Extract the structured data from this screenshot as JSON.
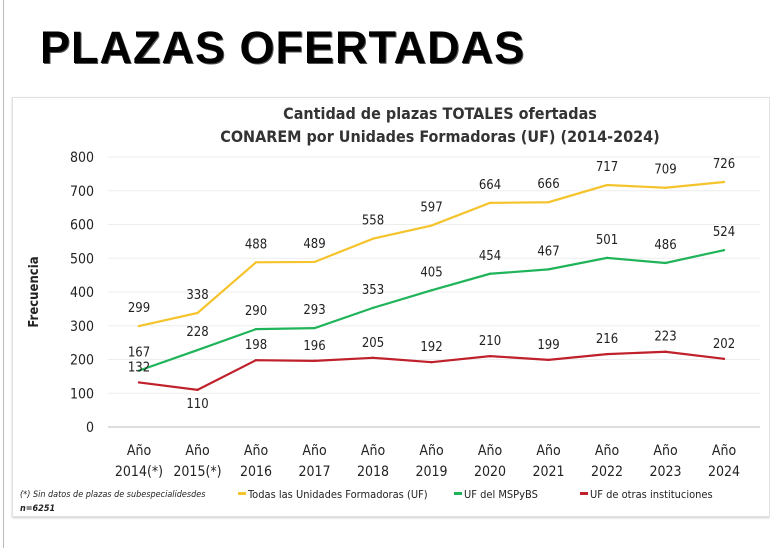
{
  "heading": "PLAZAS OFERTADAS",
  "chart_data": {
    "type": "line",
    "title": [
      "Cantidad de plazas TOTALES ofertadas",
      "CONAREM por Unidades Formadoras (UF) (2014-2024)"
    ],
    "ylabel": "Frecuencia",
    "xlabel": "",
    "ylim": [
      0,
      800
    ],
    "yticks": [
      0,
      100,
      200,
      300,
      400,
      500,
      600,
      700,
      800
    ],
    "categories": [
      [
        "Año",
        "2014(*)"
      ],
      [
        "Año",
        "2015(*)"
      ],
      [
        "Año",
        "2016"
      ],
      [
        "Año",
        "2017"
      ],
      [
        "Año",
        "2018"
      ],
      [
        "Año",
        "2019"
      ],
      [
        "Año",
        "2020"
      ],
      [
        "Año",
        "2021"
      ],
      [
        "Año",
        "2022"
      ],
      [
        "Año",
        "2023"
      ],
      [
        "Año",
        "2024"
      ]
    ],
    "series": [
      {
        "name": "Todas las Unidades Formadoras (UF)",
        "color": "#f5c32c",
        "values": [
          299,
          338,
          488,
          489,
          558,
          597,
          664,
          666,
          717,
          709,
          726
        ]
      },
      {
        "name": "UF del MSPyBS",
        "color": "#1fb45a",
        "values": [
          167,
          228,
          290,
          293,
          353,
          405,
          454,
          467,
          501,
          486,
          524
        ]
      },
      {
        "name": "UF de otras instituciones",
        "color": "#c0202a",
        "values": [
          132,
          110,
          198,
          196,
          205,
          192,
          210,
          199,
          216,
          223,
          202
        ]
      }
    ],
    "legend_position": "bottom",
    "notes": [
      "(*) Sin datos de plazas de subespecialidesdes",
      "n=6251"
    ]
  }
}
